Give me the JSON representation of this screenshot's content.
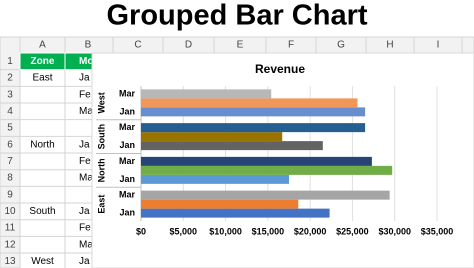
{
  "title": "Grouped Bar Chart",
  "sheet": {
    "columns": [
      "A",
      "B",
      "C",
      "D",
      "E",
      "F",
      "G",
      "H",
      "I"
    ],
    "rows": [
      "1",
      "2",
      "3",
      "4",
      "5",
      "6",
      "7",
      "8",
      "9",
      "10",
      "11",
      "12",
      "13"
    ],
    "cells": [
      [
        "Zone",
        "Mo"
      ],
      [
        "East",
        "Ja"
      ],
      [
        null,
        "Fe"
      ],
      [
        null,
        "Ma"
      ],
      [
        null,
        null
      ],
      [
        "North",
        "Ja"
      ],
      [
        null,
        "Fe"
      ],
      [
        null,
        "Ma"
      ],
      [
        null,
        null
      ],
      [
        "South",
        "Ja"
      ],
      [
        null,
        "Fe"
      ],
      [
        null,
        "Ma"
      ],
      [
        "West",
        "Ja"
      ]
    ]
  },
  "chart_data": {
    "type": "bar",
    "orientation": "horizontal",
    "title": "Revenue",
    "groups": [
      "East",
      "North",
      "South",
      "West"
    ],
    "categories": [
      "Jan",
      null,
      "Mar",
      "Jan",
      null,
      "Mar",
      "Jan",
      null,
      "Mar",
      "Jan",
      null,
      "Mar"
    ],
    "values": [
      22300,
      18600,
      29400,
      17500,
      29700,
      27300,
      21500,
      16700,
      26500,
      26500,
      25600,
      15400
    ],
    "colors": [
      "#4472c4",
      "#ed7d31",
      "#a5a5a5",
      "#5b9bd5",
      "#70ad47",
      "#264478",
      "#636363",
      "#997300",
      "#255e91",
      "#698ed0",
      "#f1975a",
      "#b7b7b7"
    ],
    "xlim": [
      0,
      35000
    ],
    "xticks": [
      {
        "value": 0,
        "label": "$0"
      },
      {
        "value": 5000,
        "label": "$5,000"
      },
      {
        "value": 10000,
        "label": "$10,000"
      },
      {
        "value": 15000,
        "label": "$15,000"
      },
      {
        "value": 20000,
        "label": "$20,000"
      },
      {
        "value": 25000,
        "label": "$25,000"
      },
      {
        "value": 30000,
        "label": "$30,000"
      },
      {
        "value": 35000,
        "label": "$35,000"
      }
    ],
    "grid": true
  }
}
